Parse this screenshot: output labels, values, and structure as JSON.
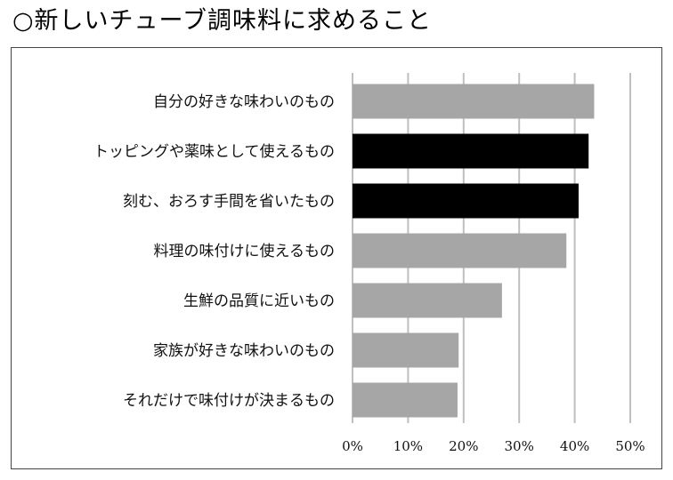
{
  "title": "○新しいチューブ調味料に求めること",
  "chart_data": {
    "type": "bar",
    "orientation": "horizontal",
    "title": "○新しいチューブ調味料に求めること",
    "categories": [
      "自分の好きな味わいのもの",
      "トッピングや薬味として使えるもの",
      "刻む、おろす手間を省いたもの",
      "料理の味付けに使えるもの",
      "生鮮の品質に近いもの",
      "家族が好きな味わいのもの",
      "それだけで味付けが決まるもの"
    ],
    "values": [
      43.5,
      42.5,
      40.7,
      38.5,
      26.9,
      19.1,
      18.9
    ],
    "bar_colors": [
      "#a6a6a6",
      "#000000",
      "#000000",
      "#a6a6a6",
      "#a6a6a6",
      "#a6a6a6",
      "#a6a6a6"
    ],
    "xlim": [
      0,
      50
    ],
    "xticks": [
      0,
      10,
      20,
      30,
      40,
      50
    ],
    "xtick_labels": [
      "0%",
      "10%",
      "20%",
      "30%",
      "40%",
      "50%"
    ],
    "grid": true,
    "gridline_color": "#bfbfbf"
  }
}
